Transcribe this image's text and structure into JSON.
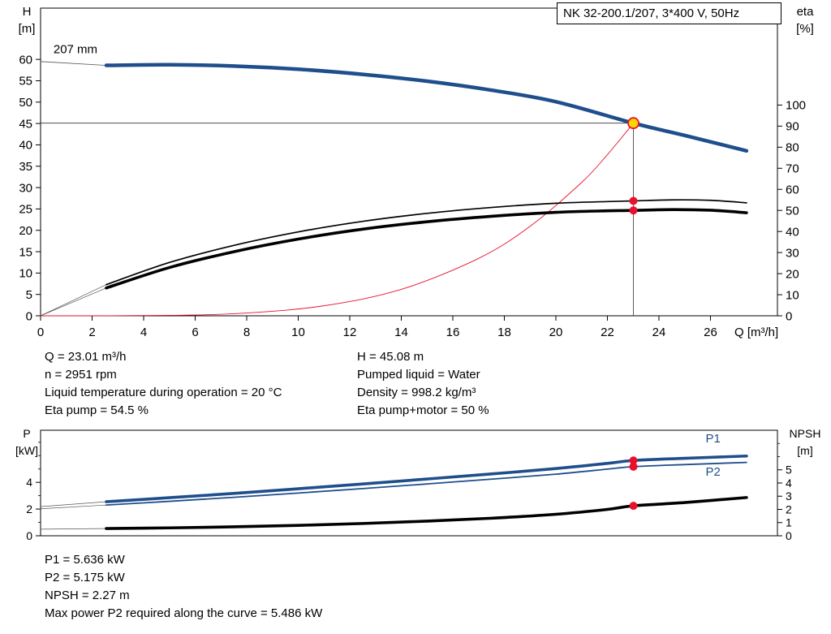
{
  "operating_data": {
    "left": [
      "Q = 23.01 m³/h",
      "n = 2951 rpm",
      "Liquid temperature during operation = 20 °C",
      "Eta pump = 54.5 %"
    ],
    "right": [
      "H = 45.08 m",
      "Pumped liquid = Water",
      "Density = 998.2 kg/m³",
      "Eta pump+motor = 50 %"
    ]
  },
  "power_data": [
    "P1 = 5.636 kW",
    "P2 = 5.175 kW",
    "NPSH = 2.27 m",
    "Max power P2 required along the curve = 5.486 kW"
  ],
  "colors": {
    "curve_blue": "#1f4e8c",
    "marker_red": "#e8112d",
    "duty_yellow": "#ffd400"
  },
  "chart_data": [
    {
      "type": "line",
      "name": "qh-eta-chart",
      "title": "NK 32-200.1/207, 3*400 V, 50Hz",
      "x_axis": {
        "label": "Q [m³/h]",
        "min": 0,
        "max": 28.6,
        "ticks": [
          0,
          2,
          4,
          6,
          8,
          10,
          12,
          14,
          16,
          18,
          20,
          22,
          24,
          26
        ]
      },
      "left_axis": {
        "name": "H",
        "unit": "[m]",
        "min": 0,
        "max": 72,
        "ticks": [
          0,
          5,
          10,
          15,
          20,
          25,
          30,
          35,
          40,
          45,
          50,
          55,
          60
        ],
        "minor_ticks": []
      },
      "right_axis": {
        "name": "eta",
        "unit": "[%]",
        "min": 0,
        "max": 146,
        "ticks": [
          0,
          10,
          20,
          30,
          40,
          50,
          60,
          70,
          80,
          90,
          100
        ],
        "minor_ticks": []
      },
      "series": [
        {
          "name": "speed-line-head",
          "axis": "left",
          "color": "#555555",
          "width": 0.8,
          "smooth": false,
          "points": [
            [
              0,
              59.5
            ],
            [
              2.55,
              58.6
            ]
          ]
        },
        {
          "name": "speed-line-eta-pump",
          "axis": "right",
          "color": "#555555",
          "width": 0.7,
          "smooth": false,
          "points": [
            [
              0,
              0
            ],
            [
              2.55,
              14.8
            ]
          ]
        },
        {
          "name": "speed-line-eta-pump-motor",
          "axis": "right",
          "color": "#555555",
          "width": 0.7,
          "smooth": false,
          "points": [
            [
              0,
              0
            ],
            [
              2.55,
              13.2
            ]
          ]
        },
        {
          "name": "duty-head-line",
          "axis": "left",
          "color": "#333333",
          "width": 0.8,
          "smooth": false,
          "points": [
            [
              0,
              45.08
            ],
            [
              23.01,
              45.08
            ]
          ]
        },
        {
          "name": "duty-flow-line",
          "axis": "left",
          "color": "#333333",
          "width": 0.8,
          "smooth": false,
          "points": [
            [
              23.01,
              45.08
            ],
            [
              23.01,
              0
            ]
          ]
        },
        {
          "name": "system-curve",
          "axis": "left",
          "color": "#e8112d",
          "width": 0.9,
          "smooth": true,
          "points": [
            [
              0,
              0
            ],
            [
              5,
              0.1
            ],
            [
              8,
              0.66
            ],
            [
              11,
              2.35
            ],
            [
              14,
              6.18
            ],
            [
              17,
              13.43
            ],
            [
              19,
              20.95
            ],
            [
              21,
              31.2
            ],
            [
              22,
              37.7
            ],
            [
              23.01,
              45.08
            ]
          ]
        },
        {
          "name": "eta-pump-curve",
          "axis": "right",
          "color": "#000000",
          "width": 1.7,
          "smooth": true,
          "points": [
            [
              2.55,
              14.8
            ],
            [
              5,
              25.3
            ],
            [
              7.5,
              33.4
            ],
            [
              10,
              39.8
            ],
            [
              12.5,
              44.8
            ],
            [
              15,
              48.6
            ],
            [
              17.5,
              51.4
            ],
            [
              20,
              53.4
            ],
            [
              22,
              54.2
            ],
            [
              23.01,
              54.5
            ],
            [
              24.5,
              55.0
            ],
            [
              26,
              54.8
            ],
            [
              27.4,
              53.6
            ]
          ]
        },
        {
          "name": "eta-pump-motor-curve",
          "axis": "right",
          "color": "#000000",
          "width": 3.6,
          "smooth": true,
          "points": [
            [
              2.55,
              13.2
            ],
            [
              5,
              22.9
            ],
            [
              7.5,
              30.4
            ],
            [
              10,
              36.4
            ],
            [
              12.5,
              41.1
            ],
            [
              15,
              44.6
            ],
            [
              17.5,
              47.2
            ],
            [
              20,
              49.1
            ],
            [
              22,
              49.8
            ],
            [
              23.01,
              50.0
            ],
            [
              24.5,
              50.4
            ],
            [
              26,
              50.1
            ],
            [
              27.4,
              48.9
            ]
          ]
        },
        {
          "name": "head-curve-207mm",
          "axis": "left",
          "color": "#1f4e8c",
          "width": 4.5,
          "smooth": true,
          "points": [
            [
              2.55,
              58.6
            ],
            [
              5,
              58.75
            ],
            [
              7.5,
              58.45
            ],
            [
              10,
              57.7
            ],
            [
              12.5,
              56.5
            ],
            [
              15,
              54.9
            ],
            [
              17.5,
              52.8
            ],
            [
              20,
              50.1
            ],
            [
              23.01,
              45.08
            ],
            [
              25,
              42.2
            ],
            [
              27.4,
              38.6
            ]
          ]
        }
      ],
      "markers": [
        {
          "name": "eta-pump-point",
          "axis": "right",
          "x": 23.01,
          "y": 54.5,
          "r": 5,
          "fill": "#e8112d"
        },
        {
          "name": "eta-pump-motor-point",
          "axis": "right",
          "x": 23.01,
          "y": 50.0,
          "r": 5,
          "fill": "#e8112d"
        },
        {
          "name": "duty-point",
          "axis": "left",
          "x": 23.01,
          "y": 45.08,
          "r": 6.5,
          "fill": "#ffd400",
          "stroke": "#e8112d",
          "stroke_width": 1.8
        }
      ],
      "labels": [
        {
          "name": "impeller-diameter-label",
          "text": "207 mm",
          "axis": "left",
          "x": 0.5,
          "y": 61.5,
          "color": "#000000",
          "size": 15,
          "anchor": "start"
        }
      ]
    },
    {
      "type": "line",
      "name": "power-npsh-chart",
      "x_axis": {
        "label": "",
        "min": 0,
        "max": 28.6,
        "ticks": []
      },
      "left_axis": {
        "name": "P",
        "unit": "[kW]",
        "min": 0,
        "max": 7.9,
        "ticks": [
          0,
          2,
          4
        ],
        "minor_ticks": [
          1,
          3,
          5,
          6,
          7
        ]
      },
      "right_axis": {
        "name": "NPSH",
        "unit": "[m]",
        "min": 0,
        "max": 8,
        "ticks": [
          0,
          1,
          2,
          3,
          4,
          5
        ],
        "minor_ticks": [
          6,
          7
        ]
      },
      "series": [
        {
          "name": "speed-line-p1",
          "axis": "left",
          "color": "#555555",
          "width": 0.7,
          "smooth": false,
          "points": [
            [
              0,
              2.18
            ],
            [
              2.55,
              2.55
            ]
          ]
        },
        {
          "name": "speed-line-p2",
          "axis": "left",
          "color": "#555555",
          "width": 0.7,
          "smooth": false,
          "points": [
            [
              0,
              2.02
            ],
            [
              2.55,
              2.3
            ]
          ]
        },
        {
          "name": "speed-line-npsh",
          "axis": "right",
          "color": "#555555",
          "width": 0.7,
          "smooth": false,
          "points": [
            [
              0,
              0.5
            ],
            [
              2.55,
              0.55
            ]
          ]
        },
        {
          "name": "p2-curve",
          "axis": "left",
          "color": "#1f4e8c",
          "width": 1.8,
          "smooth": true,
          "points": [
            [
              2.55,
              2.3
            ],
            [
              5,
              2.58
            ],
            [
              7.5,
              2.88
            ],
            [
              10,
              3.2
            ],
            [
              12.5,
              3.53
            ],
            [
              15,
              3.88
            ],
            [
              17.5,
              4.24
            ],
            [
              20,
              4.61
            ],
            [
              22,
              4.99
            ],
            [
              23.01,
              5.175
            ],
            [
              25,
              5.33
            ],
            [
              27.4,
              5.49
            ]
          ]
        },
        {
          "name": "p1-curve",
          "axis": "left",
          "color": "#1f4e8c",
          "width": 3.6,
          "smooth": true,
          "points": [
            [
              2.55,
              2.55
            ],
            [
              5,
              2.85
            ],
            [
              7.5,
              3.17
            ],
            [
              10,
              3.52
            ],
            [
              12.5,
              3.88
            ],
            [
              15,
              4.25
            ],
            [
              17.5,
              4.63
            ],
            [
              20,
              5.03
            ],
            [
              22,
              5.42
            ],
            [
              23.01,
              5.636
            ],
            [
              25,
              5.8
            ],
            [
              27.4,
              5.97
            ]
          ]
        },
        {
          "name": "npsh-curve",
          "axis": "right",
          "color": "#000000",
          "width": 3.6,
          "smooth": true,
          "points": [
            [
              2.55,
              0.55
            ],
            [
              5,
              0.6
            ],
            [
              7.5,
              0.68
            ],
            [
              10,
              0.79
            ],
            [
              12.5,
              0.93
            ],
            [
              15,
              1.11
            ],
            [
              17.5,
              1.33
            ],
            [
              20,
              1.63
            ],
            [
              22,
              2.0
            ],
            [
              23.01,
              2.27
            ],
            [
              25,
              2.52
            ],
            [
              27.4,
              2.9
            ]
          ]
        }
      ],
      "markers": [
        {
          "name": "p1-point",
          "axis": "left",
          "x": 23.01,
          "y": 5.636,
          "r": 5,
          "fill": "#e8112d"
        },
        {
          "name": "p2-point",
          "axis": "left",
          "x": 23.01,
          "y": 5.175,
          "r": 5,
          "fill": "#e8112d"
        },
        {
          "name": "npsh-point",
          "axis": "right",
          "x": 23.01,
          "y": 2.27,
          "r": 5,
          "fill": "#e8112d"
        }
      ],
      "labels": [
        {
          "name": "p1-curve-label",
          "text": "P1",
          "axis": "left",
          "x": 26.1,
          "y": 7.0,
          "color": "#1f4e8c",
          "size": 15,
          "anchor": "middle"
        },
        {
          "name": "p2-curve-label",
          "text": "P2",
          "axis": "left",
          "x": 26.1,
          "y": 4.5,
          "color": "#1f4e8c",
          "size": 15,
          "anchor": "middle"
        }
      ]
    }
  ]
}
